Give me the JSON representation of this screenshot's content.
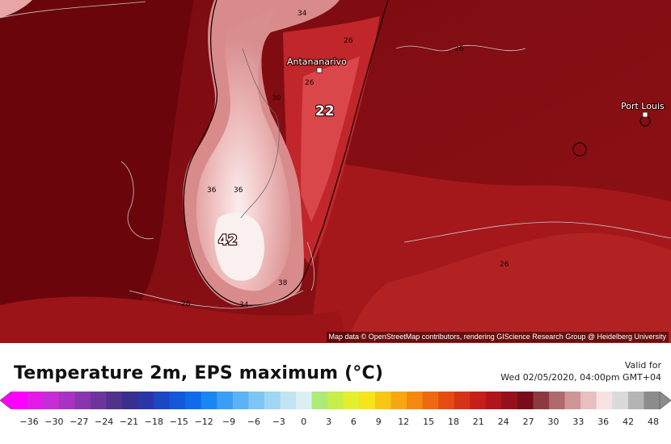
{
  "map": {
    "places": [
      {
        "name": "Antananarivo"
      },
      {
        "name": "Port Louis"
      }
    ],
    "contour_labels": [
      "34",
      "26",
      "26",
      "26",
      "30",
      "36",
      "36",
      "38",
      "34",
      "28",
      "26"
    ],
    "extremes": [
      "22",
      "42"
    ],
    "attribution": "Map data © OpenStreetMap contributors, rendering GIScience Research Group @ Heidelberg University"
  },
  "legend": {
    "title": "Temperature 2m, EPS maximum (°C)",
    "valid_label": "Valid for",
    "valid_time": "Wed 02/05/2020, 04:00pm GMT+04",
    "tick_labels": [
      "−36",
      "−30",
      "−27",
      "−24",
      "−21",
      "−18",
      "−15",
      "−12",
      "−9",
      "−6",
      "−3",
      "0",
      "3",
      "6",
      "9",
      "12",
      "15",
      "18",
      "21",
      "24",
      "27",
      "30",
      "33",
      "36",
      "42",
      "48"
    ],
    "scale_colors": [
      "#ff00ff",
      "#e31ae8",
      "#c52ed4",
      "#a833c2",
      "#8a35b0",
      "#6d349e",
      "#50318c",
      "#3a2e8e",
      "#2a36a8",
      "#1c46c2",
      "#1258da",
      "#0d6ceb",
      "#1a86f2",
      "#3a9ef5",
      "#5ab3f5",
      "#7cc6f4",
      "#9fd6f3",
      "#c0e4f2",
      "#dbeff3",
      "#aeea7a",
      "#c6ef4a",
      "#e3f02c",
      "#f5e51a",
      "#f7c714",
      "#f7a810",
      "#f4890e",
      "#ef6a0e",
      "#e54c12",
      "#d83216",
      "#c81e1a",
      "#b0141c",
      "#96101c",
      "#7a0c1a",
      "#8c3a3e",
      "#b06a6c",
      "#cf9596",
      "#e8bfbf",
      "#f6e2e2",
      "#dadada",
      "#b4b4b4",
      "#8c8c8c"
    ]
  }
}
